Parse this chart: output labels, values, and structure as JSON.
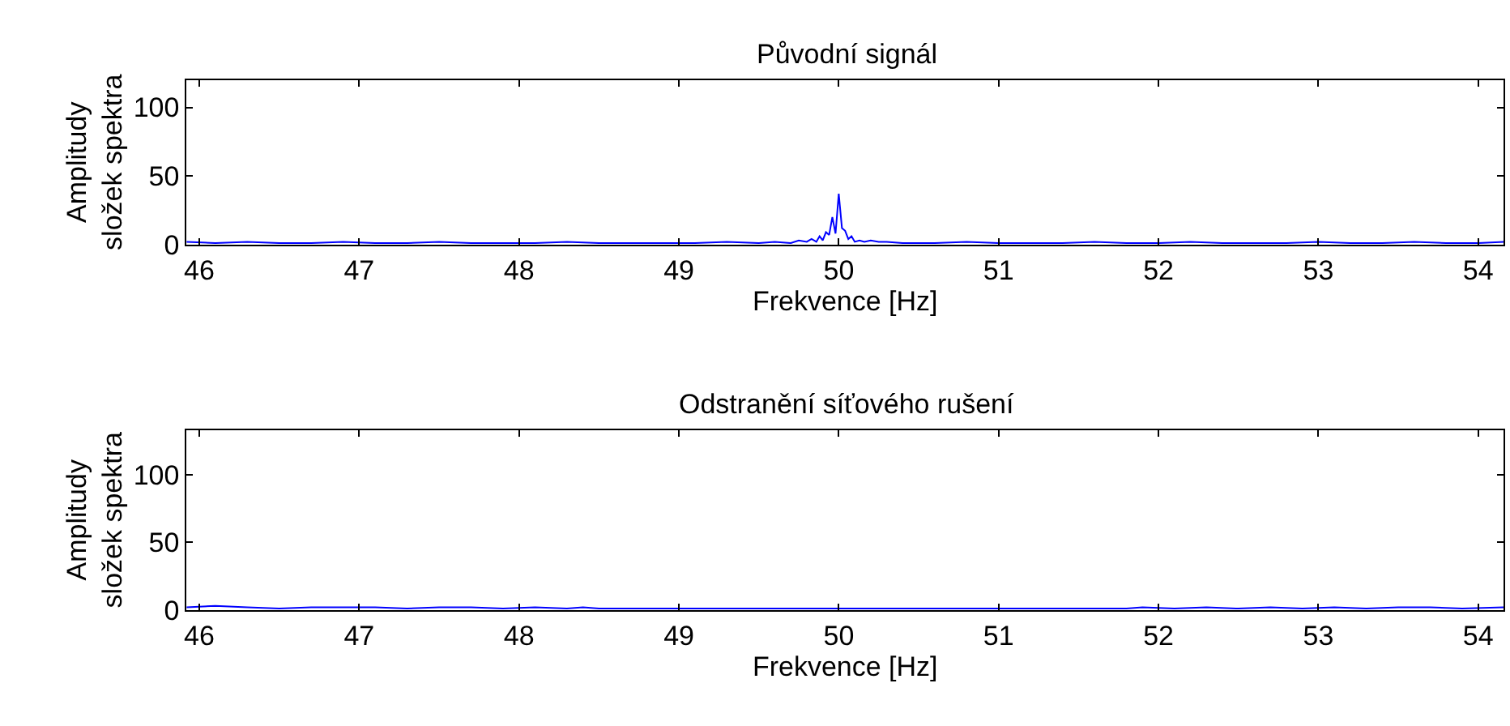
{
  "chart_data": [
    {
      "type": "line",
      "title": "Původní signál",
      "xlabel": "Frekvence [Hz]",
      "ylabel": "Amplitudy\nsložek spektra",
      "xlim": [
        45.92,
        54.16
      ],
      "ylim": [
        0,
        120
      ],
      "xticks": [
        46,
        47,
        48,
        49,
        50,
        51,
        52,
        53,
        54
      ],
      "yticks": [
        0,
        50,
        100
      ],
      "marker": "none",
      "line_style": "solid",
      "series": [
        {
          "color": "#0000ff",
          "x": [
            45.92,
            46.1,
            46.3,
            46.5,
            46.7,
            46.9,
            47.1,
            47.3,
            47.5,
            47.7,
            47.9,
            48.1,
            48.3,
            48.5,
            48.7,
            48.9,
            49.1,
            49.3,
            49.5,
            49.6,
            49.7,
            49.75,
            49.8,
            49.83,
            49.86,
            49.88,
            49.9,
            49.92,
            49.94,
            49.96,
            49.98,
            50.0,
            50.02,
            50.04,
            50.06,
            50.08,
            50.1,
            50.13,
            50.16,
            50.2,
            50.25,
            50.3,
            50.4,
            50.6,
            50.8,
            51.0,
            51.2,
            51.4,
            51.6,
            51.8,
            52.0,
            52.2,
            52.4,
            52.6,
            52.8,
            53.0,
            53.2,
            53.4,
            53.6,
            53.8,
            54.0,
            54.16
          ],
          "values": [
            2,
            1,
            2,
            1,
            1,
            2,
            1,
            1,
            2,
            1,
            1,
            1,
            2,
            1,
            1,
            1,
            1,
            2,
            1,
            2,
            1,
            3,
            2,
            4,
            2,
            6,
            3,
            9,
            7,
            20,
            8,
            37,
            12,
            10,
            4,
            6,
            2,
            3,
            2,
            3,
            2,
            2,
            1,
            1,
            2,
            1,
            1,
            1,
            2,
            1,
            1,
            2,
            1,
            1,
            1,
            2,
            1,
            1,
            2,
            1,
            1,
            2
          ]
        }
      ]
    },
    {
      "type": "line",
      "title": "Odstranění síťového rušení",
      "xlabel": "Frekvence [Hz]",
      "ylabel": "Amplitudy\nsložek spektra",
      "xlim": [
        45.92,
        54.16
      ],
      "ylim": [
        0,
        133
      ],
      "xticks": [
        46,
        47,
        48,
        49,
        50,
        51,
        52,
        53,
        54
      ],
      "yticks": [
        0,
        50,
        100
      ],
      "marker": "none",
      "line_style": "solid",
      "series": [
        {
          "color": "#0000ff",
          "x": [
            45.92,
            46.1,
            46.3,
            46.5,
            46.7,
            46.9,
            47.1,
            47.3,
            47.5,
            47.7,
            47.9,
            48.1,
            48.3,
            48.4,
            48.5,
            49.0,
            49.5,
            50.0,
            50.5,
            51.0,
            51.5,
            51.8,
            51.9,
            52.1,
            52.3,
            52.5,
            52.7,
            52.9,
            53.1,
            53.3,
            53.5,
            53.7,
            53.9,
            54.16
          ],
          "values": [
            2,
            3,
            2,
            1,
            2,
            2,
            2,
            1,
            2,
            2,
            1,
            2,
            1,
            2,
            1,
            1,
            1,
            1,
            1,
            1,
            1,
            1,
            2,
            1,
            2,
            1,
            2,
            1,
            2,
            1,
            2,
            2,
            1,
            2
          ]
        }
      ]
    }
  ]
}
